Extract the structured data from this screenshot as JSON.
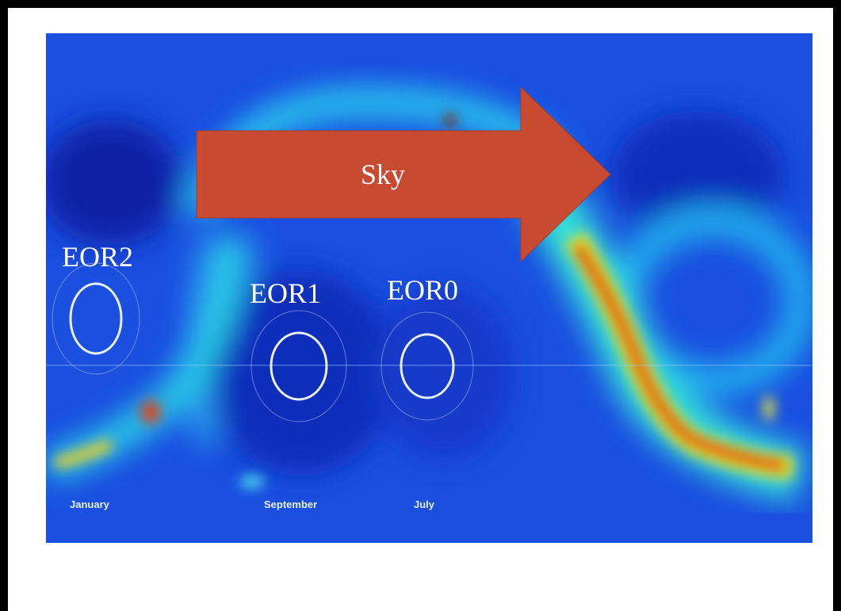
{
  "slide": {
    "arrow_label": "Sky",
    "fields": [
      {
        "label": "EOR2"
      },
      {
        "label": "EOR1"
      },
      {
        "label": "EOR0"
      }
    ],
    "months": [
      "January",
      "September",
      "July"
    ]
  }
}
